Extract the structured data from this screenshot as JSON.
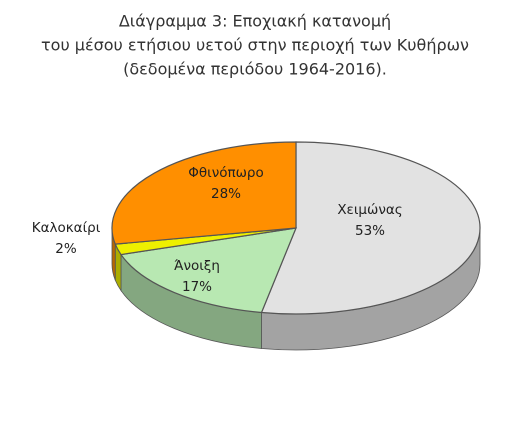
{
  "chart_data": {
    "type": "pie",
    "title": [
      "Διάγραμμα 3: Εποχιακή κατανομή",
      "του μέσου ετήσιου υετού στην περιοχή των Κυθήρων",
      "(δεδομένα περιόδου 1964-2016)."
    ],
    "categories": [
      "Χειμώνας",
      "Άνοιξη",
      "Καλοκαίρι",
      "Φθινόπωρο"
    ],
    "values": [
      53,
      17,
      2,
      28
    ],
    "value_labels": [
      "53%",
      "17%",
      "2%",
      "28%"
    ],
    "colors": [
      "#e2e2e2",
      "#b8e8b2",
      "#eef000",
      "#ff8f00"
    ]
  }
}
